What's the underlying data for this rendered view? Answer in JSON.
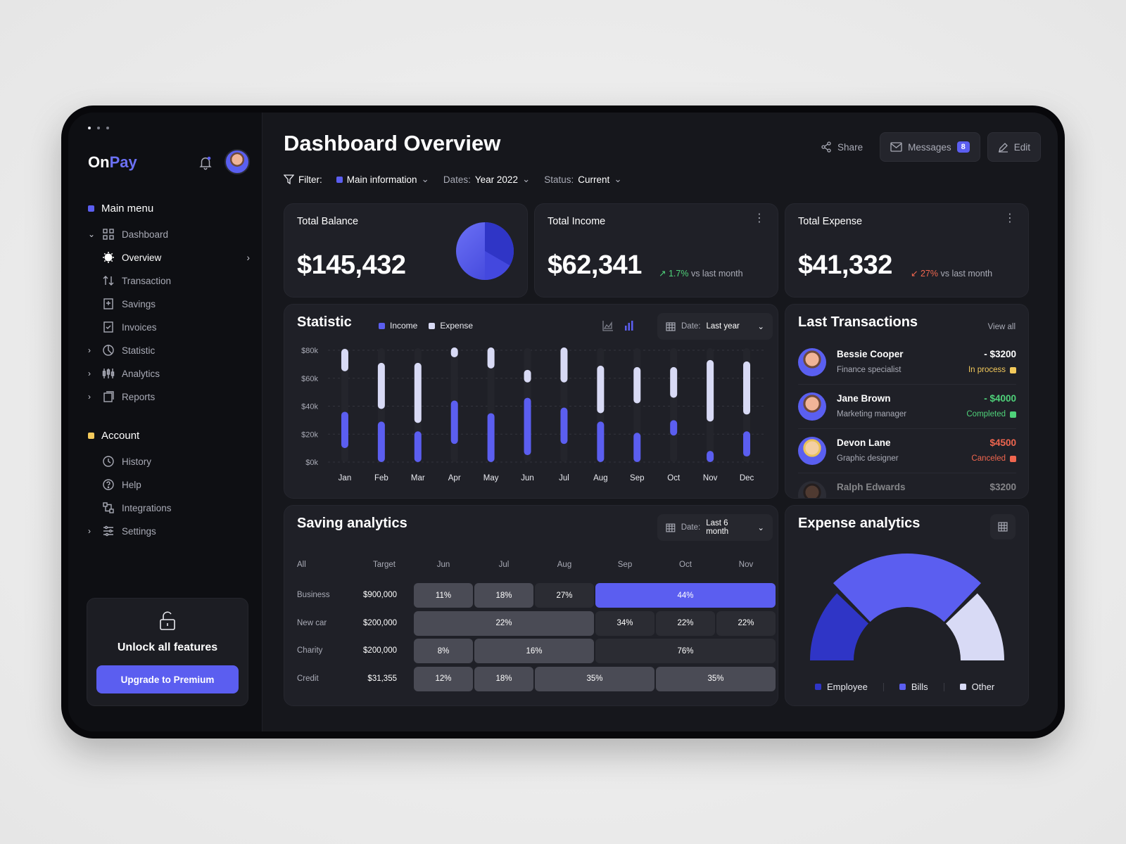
{
  "app": {
    "brand_a": "On",
    "brand_b": "Pay"
  },
  "colors": {
    "accent": "#5b5ef0",
    "pending": "#f3c95b",
    "success": "#4fd27a",
    "danger": "#f0664f",
    "expense": "#d8daf5",
    "employee": "#2f35c6"
  },
  "sidebar": {
    "main_menu_title": "Main menu",
    "items": [
      {
        "label": "Dashboard",
        "icon": "grid-icon"
      },
      {
        "label": "Overview",
        "icon": "sun-icon"
      },
      {
        "label": "Transaction",
        "icon": "arrows-updown-icon"
      },
      {
        "label": "Savings",
        "icon": "savings-icon"
      },
      {
        "label": "Invoices",
        "icon": "invoice-icon"
      },
      {
        "label": "Statistic",
        "icon": "pie-icon"
      },
      {
        "label": "Analytics",
        "icon": "candles-icon"
      },
      {
        "label": "Reports",
        "icon": "reports-icon"
      }
    ],
    "account_title": "Account",
    "account_items": [
      {
        "label": "History",
        "icon": "history-icon"
      },
      {
        "label": "Help",
        "icon": "help-icon"
      },
      {
        "label": "Integrations",
        "icon": "integrations-icon"
      },
      {
        "label": "Settings",
        "icon": "sliders-icon"
      }
    ],
    "unlock": {
      "title": "Unlock all features",
      "button": "Upgrade to Premium"
    }
  },
  "header": {
    "title": "Dashboard Overview",
    "share": "Share",
    "messages": "Messages",
    "messages_count": "8",
    "edit": "Edit"
  },
  "filters": {
    "label": "Filter:",
    "main": "Main information",
    "dates_label": "Dates:",
    "dates_value": "Year 2022",
    "status_label": "Status:",
    "status_value": "Current"
  },
  "kpis": {
    "balance": {
      "title": "Total Balance",
      "value": "$145,432"
    },
    "income": {
      "title": "Total Income",
      "value": "$62,341",
      "delta": "1.7%",
      "delta_text": "vs last month"
    },
    "expense": {
      "title": "Total Expense",
      "value": "$41,332",
      "delta": "27%",
      "delta_text": "vs last month"
    }
  },
  "statistic": {
    "title": "Statistic",
    "legend_income": "Income",
    "legend_expense": "Expense",
    "date_label": "Date:",
    "date_value": "Last year"
  },
  "chart_data": {
    "type": "bar",
    "categories": [
      "Jan",
      "Feb",
      "Mar",
      "Apr",
      "May",
      "Jun",
      "Jul",
      "Aug",
      "Sep",
      "Oct",
      "Nov",
      "Dec"
    ],
    "ylim": [
      0,
      80000
    ],
    "yticks": [
      "$0k",
      "$20k",
      "$40k",
      "$60k",
      "$80k"
    ],
    "series": [
      {
        "name": "Income",
        "ranges": [
          [
            10000,
            36000
          ],
          [
            0,
            29000
          ],
          [
            0,
            22000
          ],
          [
            13000,
            44000
          ],
          [
            0,
            35000
          ],
          [
            5000,
            46000
          ],
          [
            13000,
            39000
          ],
          [
            0,
            29000
          ],
          [
            0,
            21000
          ],
          [
            19000,
            30000
          ],
          [
            0,
            8000
          ],
          [
            4000,
            22000
          ]
        ]
      },
      {
        "name": "Expense",
        "ranges": [
          [
            65000,
            81000
          ],
          [
            38000,
            71000
          ],
          [
            28000,
            71000
          ],
          [
            75000,
            82000
          ],
          [
            67000,
            82000
          ],
          [
            57000,
            66000
          ],
          [
            57000,
            82000
          ],
          [
            35000,
            69000
          ],
          [
            42000,
            68000
          ],
          [
            46000,
            68000
          ],
          [
            29000,
            73000
          ],
          [
            34000,
            72000
          ]
        ]
      }
    ]
  },
  "transactions": {
    "title": "Last Transactions",
    "view_all": "View all",
    "items": [
      {
        "name": "Bessie Cooper",
        "role": "Finance specialist",
        "amount": "- $3200",
        "status": "In process",
        "status_color": "#f3c95b",
        "amount_color": "#ffffff"
      },
      {
        "name": "Jane Brown",
        "role": "Marketing manager",
        "amount": "- $4000",
        "status": "Completed",
        "status_color": "#4fd27a",
        "amount_color": "#4fd27a"
      },
      {
        "name": "Devon Lane",
        "role": "Graphic designer",
        "amount": "$4500",
        "status": "Canceled",
        "status_color": "#f0664f",
        "amount_color": "#f0664f"
      },
      {
        "name": "Ralph Edwards",
        "role": "",
        "amount": "$3200",
        "status": "",
        "status_color": "#888",
        "amount_color": "#888"
      }
    ]
  },
  "saving": {
    "title": "Saving analytics",
    "date_label": "Date:",
    "date_value": "Last 6 month",
    "headers": [
      "All",
      "Target",
      "Jun",
      "Jul",
      "Aug",
      "Sep",
      "Oct",
      "Nov"
    ],
    "rows": [
      {
        "label": "Business",
        "target": "$900,000",
        "cells": [
          {
            "text": "11%",
            "span": 1,
            "style": "light"
          },
          {
            "text": "18%",
            "span": 1,
            "style": "light"
          },
          {
            "text": "27%",
            "span": 1,
            "style": "dark"
          },
          {
            "text": "44%",
            "span": 3,
            "style": "hl"
          }
        ]
      },
      {
        "label": "New car",
        "target": "$200,000",
        "cells": [
          {
            "text": "22%",
            "span": 3,
            "style": "light"
          },
          {
            "text": "34%",
            "span": 1,
            "style": "dark"
          },
          {
            "text": "22%",
            "span": 1,
            "style": "dark"
          },
          {
            "text": "22%",
            "span": 1,
            "style": "dark"
          }
        ]
      },
      {
        "label": "Charity",
        "target": "$200,000",
        "cells": [
          {
            "text": "8%",
            "span": 1,
            "style": "light"
          },
          {
            "text": "16%",
            "span": 2,
            "style": "light"
          },
          {
            "text": "76%",
            "span": 3,
            "style": "dark"
          }
        ]
      },
      {
        "label": "Credit",
        "target": "$31,355",
        "cells": [
          {
            "text": "12%",
            "span": 1,
            "style": "light"
          },
          {
            "text": "18%",
            "span": 1,
            "style": "light"
          },
          {
            "text": "35%",
            "span": 2,
            "style": "light"
          },
          {
            "text": "35%",
            "span": 2,
            "style": "light"
          }
        ]
      }
    ]
  },
  "expense_analytics": {
    "title": "Expense analytics",
    "segments": [
      {
        "name": "Employee",
        "value": 25,
        "color": "#2f35c6"
      },
      {
        "name": "Bills",
        "value": 50,
        "color": "#5b5ef0"
      },
      {
        "name": "Other",
        "value": 25,
        "color": "#d8daf5"
      }
    ]
  }
}
